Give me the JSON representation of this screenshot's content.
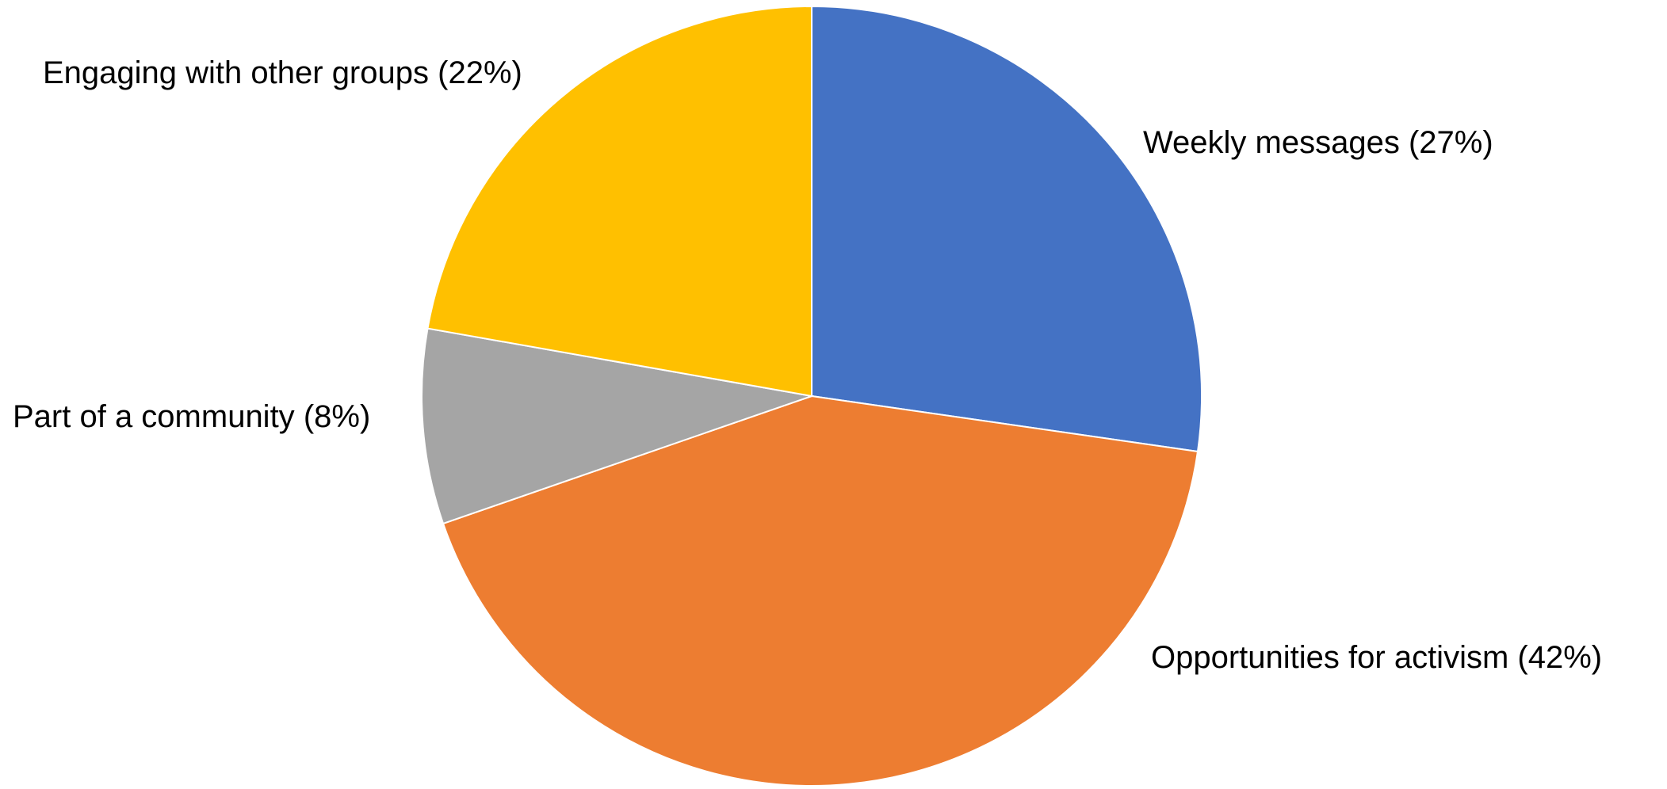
{
  "chart_data": {
    "type": "pie",
    "categories": [
      "Weekly messages",
      "Opportunities for activism",
      "Part of a community",
      "Engaging with other groups"
    ],
    "values": [
      27,
      42,
      8,
      22
    ],
    "value_labels": [
      "(27%)",
      "(42%)",
      "(8%)",
      "(22%)"
    ],
    "colors": [
      "#4472c4",
      "#ed7d31",
      "#a5a5a5",
      "#ffc000"
    ]
  }
}
